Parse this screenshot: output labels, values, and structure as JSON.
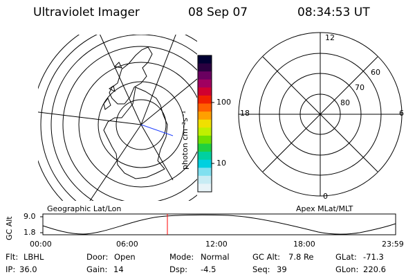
{
  "header": {
    "instrument": "Ultraviolet Imager",
    "date": "08 Sep 07",
    "time": "08:34:53 UT"
  },
  "left_map": {
    "caption": "Geographic Lat/Lon"
  },
  "right_map": {
    "caption": "Apex MLat/MLT",
    "mlt_labels": [
      "12",
      "18",
      "6",
      "0"
    ],
    "mlat_labels": [
      "60",
      "70",
      "80"
    ]
  },
  "colorbar": {
    "unit_label": "photon cm⁻²s⁻¹",
    "tick_labels": [
      "100",
      "10"
    ],
    "colors": [
      "#000033",
      "#2a0040",
      "#6a0060",
      "#a00060",
      "#d00030",
      "#f02000",
      "#ff6000",
      "#ffa000",
      "#f0e000",
      "#c0f000",
      "#70e000",
      "#20d040",
      "#00d0a0",
      "#00d0e0",
      "#80e0f0",
      "#c8ecf4",
      "#e8f4f8"
    ]
  },
  "orbit_plot": {
    "y_label": "GC Alt",
    "y_ticks": [
      "9.0",
      "1.8"
    ],
    "x_ticks": [
      "00:00",
      "06:00",
      "12:00",
      "18:00",
      "23:59"
    ],
    "current_marker_color": "#ff0000"
  },
  "status": {
    "row1": [
      {
        "key": "Flt:",
        "val": "LBHL"
      },
      {
        "key": "Door:",
        "val": "Open"
      },
      {
        "key": "Mode:",
        "val": "Normal"
      },
      {
        "key": "GC Alt:",
        "val": "7.8 Re"
      },
      {
        "key": "GLat:",
        "val": "-71.3"
      }
    ],
    "row2": [
      {
        "key": "IP:",
        "val": "36.0"
      },
      {
        "key": "Gain:",
        "val": "14"
      },
      {
        "key": "Dsp:",
        "val": "-4.5"
      },
      {
        "key": "Seq:",
        "val": "39"
      },
      {
        "key": "GLon:",
        "val": "220.6"
      }
    ]
  }
}
